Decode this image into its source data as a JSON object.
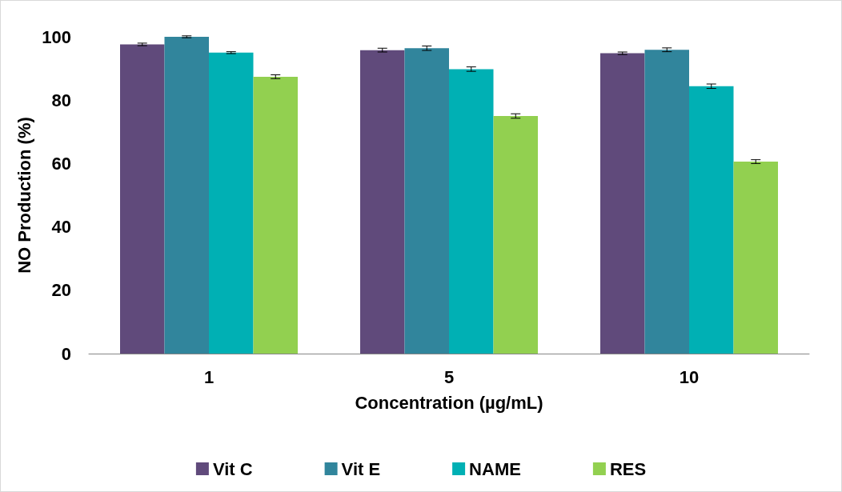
{
  "chart_data": {
    "type": "bar",
    "xlabel": "Concentration (µg/mL)",
    "ylabel": "NO Production (%)",
    "categories": [
      "1",
      "5",
      "10"
    ],
    "series": [
      {
        "name": "Vit C",
        "color": "#604a7b",
        "values": [
          97.6,
          95.8,
          94.8
        ],
        "errors": [
          0.4,
          0.6,
          0.4
        ]
      },
      {
        "name": "Vit E",
        "color": "#31859c",
        "values": [
          100,
          96.4,
          95.9
        ],
        "errors": [
          0.3,
          0.7,
          0.6
        ]
      },
      {
        "name": "NAME",
        "color": "#00b0b4",
        "values": [
          95,
          89.8,
          84.4
        ],
        "errors": [
          0.3,
          0.7,
          0.7
        ]
      },
      {
        "name": "RES",
        "color": "#92d050",
        "values": [
          87.4,
          75,
          60.6
        ],
        "errors": [
          0.6,
          0.7,
          0.6
        ]
      }
    ],
    "ylim": [
      0,
      100
    ],
    "yticks": [
      0,
      20,
      40,
      60,
      80,
      100
    ],
    "grid": false,
    "legend": "bottom"
  }
}
